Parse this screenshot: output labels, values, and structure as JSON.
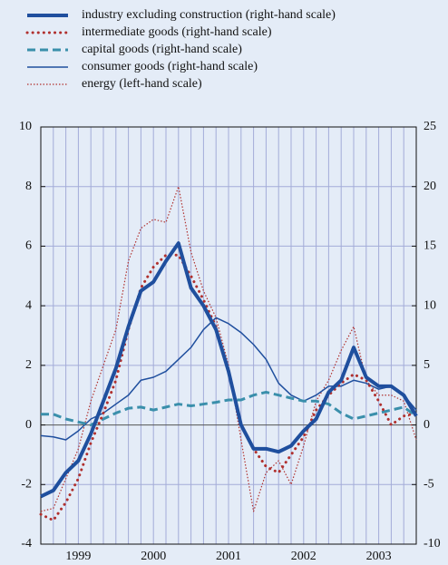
{
  "chart_data": {
    "type": "line",
    "categories": [
      null,
      null,
      null,
      "1999",
      null,
      null,
      null,
      null,
      null,
      "2000",
      null,
      null,
      null,
      null,
      null,
      "2001",
      null,
      null,
      null,
      null,
      null,
      "2002",
      null,
      null,
      null,
      null,
      null,
      "2003",
      null,
      null,
      null
    ],
    "ylim": [
      -4,
      10
    ],
    "yticks": [
      -4,
      -2,
      0,
      2,
      4,
      6,
      8,
      10
    ],
    "y2lim": [
      -10,
      25
    ],
    "y2ticks": [
      -10,
      -5,
      0,
      5,
      10,
      15,
      20,
      25
    ],
    "grid": true,
    "legend": "top",
    "series": [
      {
        "name": "industry excluding construction (right-hand scale)",
        "color": "#1f4f9e",
        "axis": "y2",
        "line_style": "solid",
        "line_width": 4,
        "values": [
          -6,
          -5.5,
          -4,
          -3,
          -0.75,
          2,
          4.75,
          8.25,
          11.25,
          12,
          13.75,
          15.25,
          11.5,
          10,
          8,
          4.5,
          0,
          -2,
          -2,
          -2.25,
          -1.75,
          -0.5,
          0.5,
          2.75,
          3.75,
          6.5,
          4,
          3.25,
          3.25,
          2.5,
          0.75
        ]
      },
      {
        "name": "intermediate goods (right-hand scale)",
        "color": "#b0302e",
        "axis": "y2",
        "line_style": "dotted",
        "line_width": 3,
        "values": [
          -7.5,
          -8,
          -6.5,
          -4.5,
          -1.5,
          1,
          3.75,
          8,
          11.5,
          13.25,
          14.25,
          14.25,
          12.5,
          10.5,
          8.25,
          4.5,
          0,
          -2,
          -3.5,
          -4,
          -2.5,
          -1,
          1.25,
          2.5,
          3.5,
          4.25,
          3.75,
          2,
          0,
          0.75,
          1
        ]
      },
      {
        "name": "capital goods (right-hand scale)",
        "color": "#3a8fab",
        "axis": "y2",
        "line_style": "dashed",
        "line_width": 3,
        "values": [
          0.9,
          0.9,
          0.5,
          0.25,
          0,
          0.5,
          1,
          1.4,
          1.5,
          1.25,
          1.5,
          1.75,
          1.6,
          1.75,
          1.9,
          2.1,
          2.1,
          2.5,
          2.75,
          2.5,
          2.25,
          2,
          2,
          1.75,
          1,
          0.5,
          0.75,
          1,
          1.25,
          1.5,
          0.75
        ]
      },
      {
        "name": "consumer goods (right-hand scale)",
        "color": "#1f4f9e",
        "axis": "y2",
        "line_style": "solid",
        "line_width": 1.5,
        "values": [
          -0.9,
          -1,
          -1.25,
          -0.5,
          0.5,
          1,
          1.75,
          2.5,
          3.75,
          4,
          4.5,
          5.5,
          6.5,
          8,
          9,
          8.5,
          7.75,
          6.75,
          5.5,
          3.5,
          2.5,
          2,
          2.5,
          3.25,
          3.25,
          3.75,
          3.5,
          3,
          3.25,
          2.5,
          1.25
        ]
      },
      {
        "name": "energy (left-hand scale)",
        "color": "#b0302e",
        "axis": "y",
        "line_style": "fine-dotted",
        "line_width": 1.2,
        "values": [
          -2.9,
          -2.8,
          -1.8,
          -0.8,
          0.8,
          2,
          3.2,
          5.5,
          6.6,
          6.9,
          6.8,
          8,
          5.8,
          4.5,
          3.6,
          2,
          -0.5,
          -2.9,
          -1.6,
          -1.2,
          -2,
          -0.7,
          0.8,
          1.5,
          2.5,
          3.3,
          1.5,
          1,
          1,
          0.8,
          -0.5
        ]
      }
    ]
  }
}
